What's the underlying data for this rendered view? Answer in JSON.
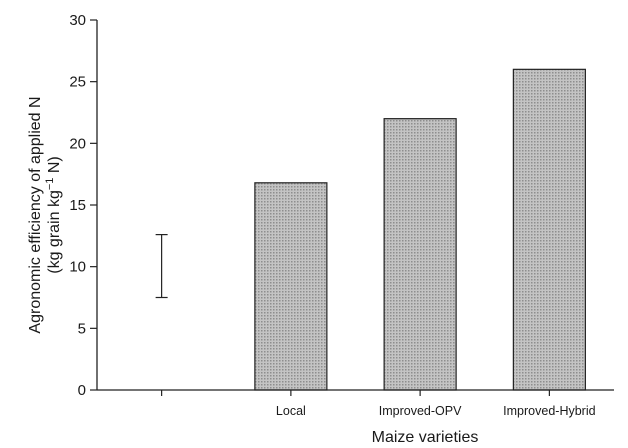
{
  "chart_data": {
    "type": "bar",
    "title": "",
    "xlabel": "Maize varieties",
    "ylabel": {
      "line1": "Agronomic efficiency of applied N",
      "line2_a": "(kg grain kg",
      "line2_sup": "−1",
      "line2_b": " N)"
    },
    "slots": [
      "",
      "Local",
      "Improved-OPV",
      "Improved-Hybrid"
    ],
    "categories": [
      "Local",
      "Improved-OPV",
      "Improved-Hybrid"
    ],
    "values": [
      16.8,
      22.0,
      26.0
    ],
    "ylim": [
      0,
      30
    ],
    "yticks": [
      "0",
      "5",
      "10",
      "15",
      "20",
      "25",
      "30"
    ],
    "error_bar": {
      "slot": 0,
      "low": 7.5,
      "high": 12.6
    },
    "grid": false,
    "bar_color": "#b3b3b3",
    "bar_stroke": "#222222"
  }
}
